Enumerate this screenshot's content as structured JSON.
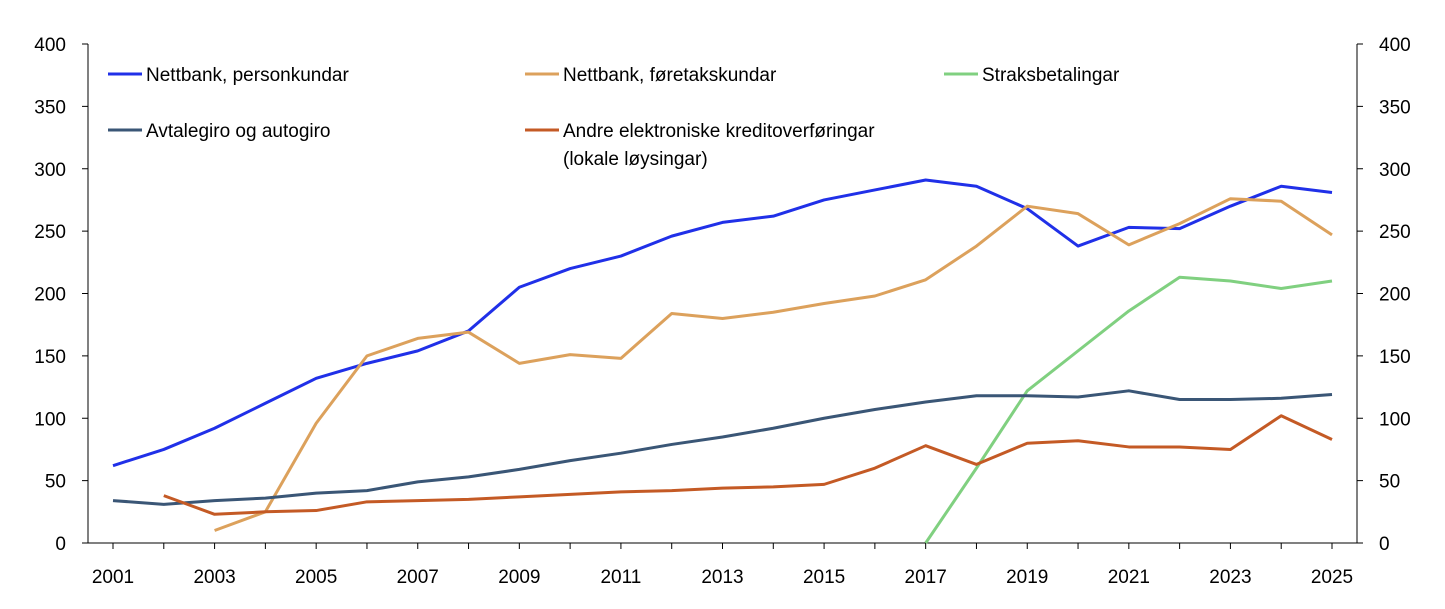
{
  "chart_data": {
    "type": "line",
    "x": [
      2001,
      2002,
      2003,
      2004,
      2005,
      2006,
      2007,
      2008,
      2009,
      2010,
      2011,
      2012,
      2013,
      2014,
      2015,
      2016,
      2017,
      2018,
      2019,
      2020,
      2021,
      2022,
      2023,
      2024,
      2025
    ],
    "x_tick_labels": [
      "2001",
      "2003",
      "2005",
      "2007",
      "2009",
      "2011",
      "2013",
      "2015",
      "2017",
      "2019",
      "2021",
      "2023",
      "2025"
    ],
    "ylim": [
      0,
      400
    ],
    "y_tick_labels": [
      "0",
      "50",
      "100",
      "150",
      "200",
      "250",
      "300",
      "350",
      "400"
    ],
    "y2lim": [
      0,
      400
    ],
    "title": "",
    "xlabel": "",
    "ylabel": "",
    "grid": false,
    "legend_position": "top",
    "series": [
      {
        "name": "Nettbank, personkundar",
        "color": "#2030e8",
        "values": [
          62,
          75,
          92,
          112,
          132,
          144,
          154,
          170,
          205,
          220,
          230,
          246,
          257,
          262,
          275,
          283,
          291,
          286,
          268,
          238,
          253,
          252,
          270,
          286,
          281
        ]
      },
      {
        "name": "Nettbank, føretakskundar",
        "color": "#dca15c",
        "values": [
          null,
          null,
          10,
          25,
          96,
          150,
          164,
          169,
          144,
          151,
          148,
          184,
          180,
          185,
          192,
          198,
          211,
          238,
          270,
          264,
          239,
          256,
          276,
          274,
          247
        ]
      },
      {
        "name": "Straksbetalingar",
        "color": "#80d080",
        "values": [
          null,
          null,
          null,
          null,
          null,
          null,
          null,
          null,
          null,
          null,
          null,
          null,
          null,
          null,
          null,
          null,
          0,
          60,
          122,
          154,
          186,
          213,
          210,
          204,
          210
        ]
      },
      {
        "name": "Avtalegiro og autogiro",
        "color": "#3a5676",
        "values": [
          34,
          31,
          34,
          36,
          40,
          42,
          49,
          53,
          59,
          66,
          72,
          79,
          85,
          92,
          100,
          107,
          113,
          118,
          118,
          117,
          122,
          115,
          115,
          116,
          119
        ]
      },
      {
        "name": "Andre elektroniske kreditoverføringar",
        "name_line2": "(lokale løysingar)",
        "color": "#c45a25",
        "values": [
          null,
          38,
          23,
          25,
          26,
          33,
          34,
          35,
          37,
          39,
          41,
          42,
          44,
          45,
          47,
          60,
          78,
          63,
          80,
          82,
          77,
          77,
          75,
          102,
          83
        ]
      }
    ]
  }
}
